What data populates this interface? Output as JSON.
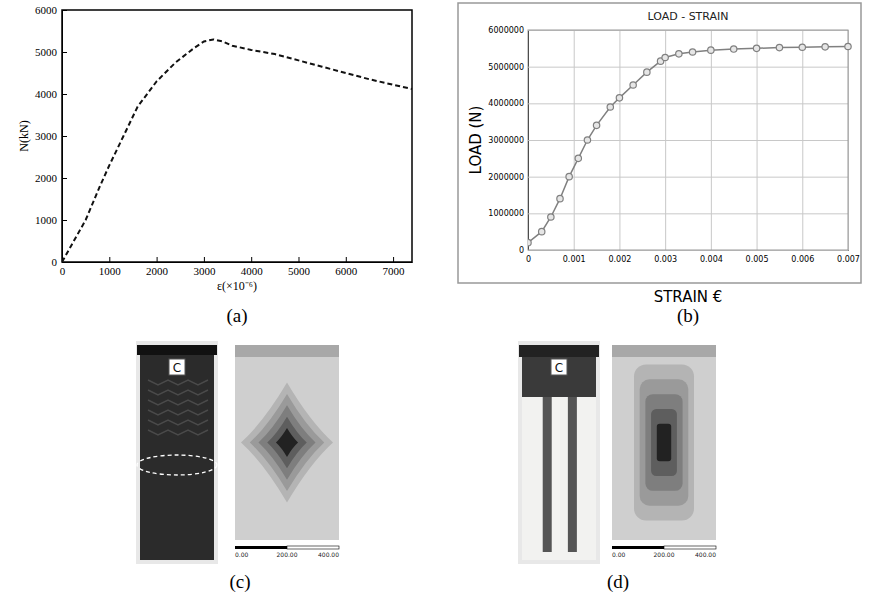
{
  "chart_data": [
    {
      "type": "line",
      "caption": "(a)",
      "x_label": "ε(×10⁻⁶)",
      "y_label": "N(kN)",
      "x": [
        0,
        200,
        500,
        800,
        1000,
        1300,
        1600,
        2000,
        2400,
        2800,
        3000,
        3200,
        3400,
        3600,
        4000,
        4500,
        5000,
        5500,
        6000,
        6500,
        7000,
        7400
      ],
      "values": [
        0,
        400,
        1000,
        1800,
        2300,
        3000,
        3700,
        4300,
        4750,
        5100,
        5250,
        5300,
        5250,
        5150,
        5050,
        4950,
        4800,
        4650,
        4500,
        4350,
        4220,
        4120
      ],
      "color": "#111111",
      "line_style": "dashed",
      "grid": false,
      "xlim": [
        0,
        7400
      ],
      "xticks": [
        0,
        1000,
        2000,
        3000,
        4000,
        5000,
        6000,
        7000
      ],
      "ylim": [
        0,
        6000
      ],
      "yticks": [
        0,
        1000,
        2000,
        3000,
        4000,
        5000,
        6000
      ]
    },
    {
      "type": "line",
      "caption": "(b)",
      "title": "LOAD - STRAIN",
      "x_label": "STRAIN €",
      "y_label": "LOAD (N)",
      "x": [
        0,
        0.0003,
        0.0005,
        0.0007,
        0.0009,
        0.0011,
        0.0013,
        0.0015,
        0.0018,
        0.002,
        0.0023,
        0.0026,
        0.0029,
        0.003,
        0.0033,
        0.0036,
        0.004,
        0.0045,
        0.005,
        0.0055,
        0.006,
        0.0065,
        0.007
      ],
      "values": [
        200000,
        500000,
        900000,
        1400000,
        2000000,
        2500000,
        3000000,
        3400000,
        3900000,
        4150000,
        4500000,
        4850000,
        5150000,
        5250000,
        5350000,
        5400000,
        5450000,
        5480000,
        5500000,
        5520000,
        5530000,
        5540000,
        5550000
      ],
      "color": "#808080",
      "marker": "circle",
      "grid": true,
      "xlim": [
        0,
        0.007
      ],
      "xticks": [
        0,
        0.001,
        0.002,
        0.003,
        0.004,
        0.005,
        0.006,
        0.007
      ],
      "ylim": [
        0,
        6000000
      ],
      "yticks": [
        0,
        1000000,
        2000000,
        3000000,
        4000000,
        5000000,
        6000000
      ]
    }
  ],
  "photos": [
    {
      "caption": "(c)",
      "specimen_label": "C",
      "scale_labels": [
        "0.00",
        "200.00",
        "400.00"
      ]
    },
    {
      "caption": "(d)",
      "specimen_label": "C",
      "scale_labels": [
        "0.00",
        "200.00",
        "400.00"
      ]
    }
  ]
}
